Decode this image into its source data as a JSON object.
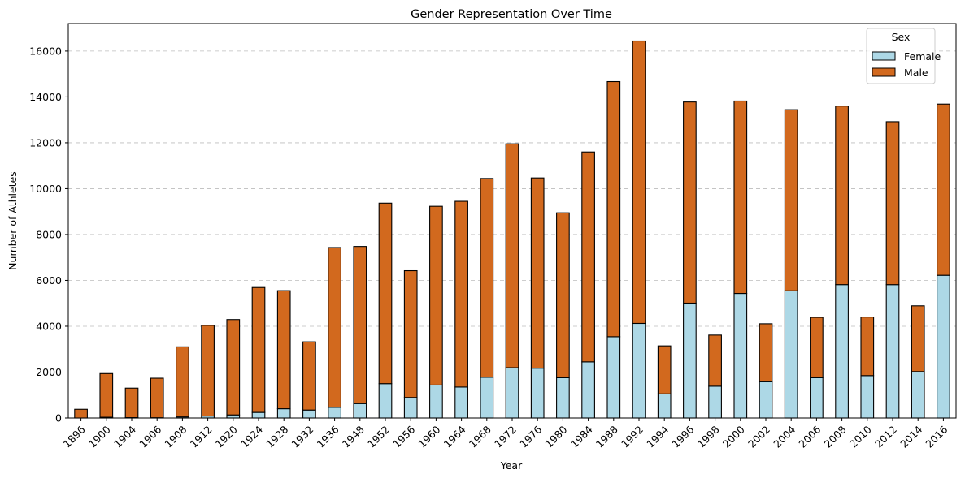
{
  "chart_data": {
    "type": "bar",
    "stacked": true,
    "title": "Gender Representation Over Time",
    "xlabel": "Year",
    "ylabel": "Number of Athletes",
    "ylim": [
      0,
      17200
    ],
    "yticks": [
      0,
      2000,
      4000,
      6000,
      8000,
      10000,
      12000,
      14000,
      16000
    ],
    "grid": "y, dashed",
    "legend": {
      "title": "Sex",
      "placement": "top-right"
    },
    "categories": [
      "1896",
      "1900",
      "1904",
      "1906",
      "1908",
      "1912",
      "1920",
      "1924",
      "1928",
      "1932",
      "1936",
      "1948",
      "1952",
      "1956",
      "1960",
      "1964",
      "1968",
      "1972",
      "1976",
      "1980",
      "1984",
      "1988",
      "1992",
      "1994",
      "1996",
      "1998",
      "2000",
      "2002",
      "2004",
      "2006",
      "2008",
      "2010",
      "2012",
      "2014",
      "2016"
    ],
    "series": [
      {
        "name": "Female",
        "color": "#add8e6",
        "values": [
          0,
          33,
          16,
          11,
          47,
          87,
          134,
          244,
          404,
          347,
          468,
          628,
          1497,
          893,
          1435,
          1348,
          1777,
          2193,
          2172,
          1756,
          2447,
          3543,
          4124,
          1051,
          5008,
          1384,
          5431,
          1582,
          5546,
          1757,
          5816,
          1847,
          5815,
          2023,
          6223
        ]
      },
      {
        "name": "Male",
        "color": "#d2691e",
        "values": [
          380,
          1903,
          1285,
          1722,
          3054,
          3953,
          4158,
          5446,
          5148,
          2974,
          6964,
          6852,
          7871,
          5529,
          7796,
          8100,
          8668,
          9762,
          8297,
          7191,
          9153,
          11126,
          12315,
          2093,
          8772,
          2231,
          8390,
          2527,
          7897,
          2630,
          7786,
          2555,
          7105,
          2868,
          7465
        ]
      }
    ]
  }
}
